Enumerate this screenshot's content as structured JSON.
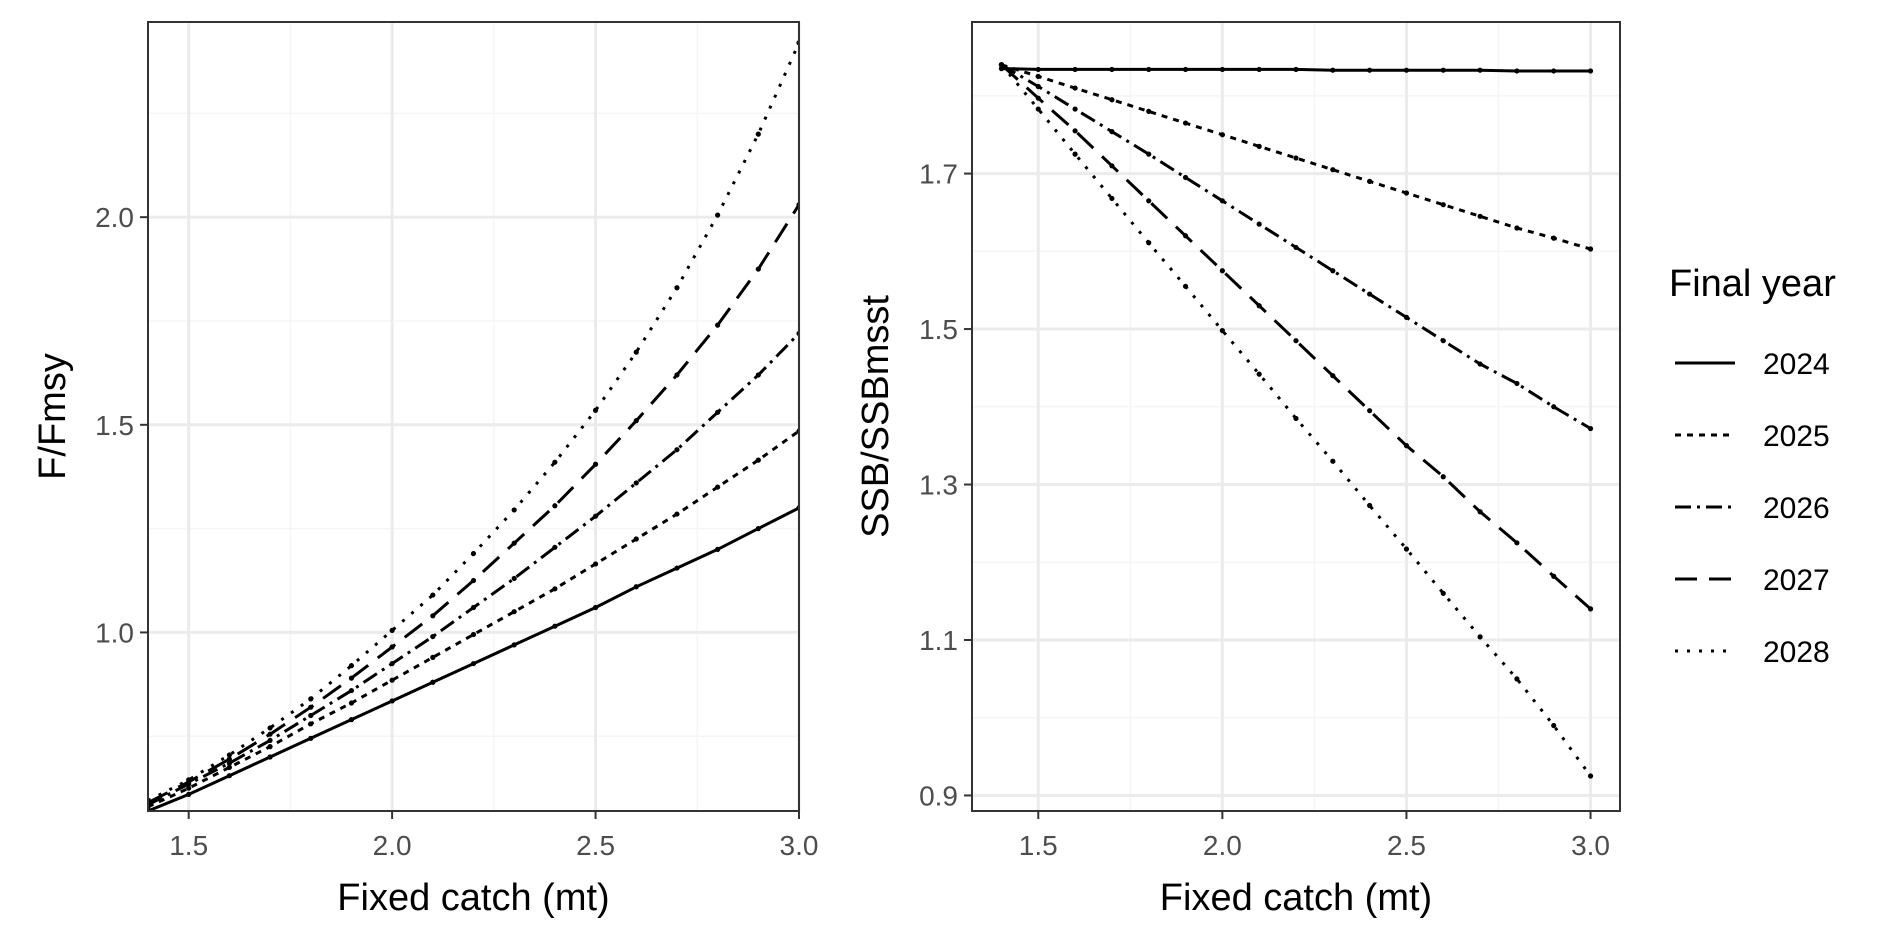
{
  "colors": {
    "line": "#000000",
    "grid_major": "#ebebeb",
    "grid_minor": "#f5f5f5",
    "panel_border": "#333333",
    "tick_text": "#4d4d4d"
  },
  "legend": {
    "title": "Final year",
    "placement": "right"
  },
  "chart_data": [
    {
      "type": "line",
      "title": "",
      "xlabel": "Fixed catch (mt)",
      "ylabel": "F/Fmsy",
      "xlim": [
        1.4,
        3.0
      ],
      "ylim": [
        0.57,
        2.47
      ],
      "xticks": [
        1.5,
        2.0,
        2.5,
        3.0
      ],
      "xtick_labels": [
        "1.5",
        "2.0",
        "2.5",
        "3.0"
      ],
      "yticks": [
        1.0,
        1.5,
        2.0
      ],
      "ytick_labels": [
        "1.0",
        "1.5",
        "2.0"
      ],
      "grid": true,
      "points_shown": true,
      "x": [
        1.4,
        1.5,
        1.6,
        1.7,
        1.8,
        1.9,
        2.0,
        2.1,
        2.2,
        2.3,
        2.4,
        2.5,
        2.6,
        2.7,
        2.8,
        2.9,
        3.0
      ],
      "series": [
        {
          "name": "2024",
          "dash": "solid",
          "values": [
            0.57,
            0.61,
            0.655,
            0.7,
            0.745,
            0.79,
            0.835,
            0.88,
            0.925,
            0.97,
            1.015,
            1.06,
            1.11,
            1.155,
            1.2,
            1.25,
            1.3
          ]
        },
        {
          "name": "2025",
          "dash": "dotted-dash",
          "values": [
            0.58,
            0.625,
            0.675,
            0.725,
            0.78,
            0.83,
            0.885,
            0.94,
            0.995,
            1.05,
            1.105,
            1.165,
            1.225,
            1.285,
            1.35,
            1.415,
            1.485
          ]
        },
        {
          "name": "2026",
          "dash": "dash-dot",
          "values": [
            0.585,
            0.635,
            0.685,
            0.74,
            0.8,
            0.86,
            0.925,
            0.99,
            1.06,
            1.13,
            1.205,
            1.28,
            1.36,
            1.44,
            1.53,
            1.62,
            1.72
          ]
        },
        {
          "name": "2027",
          "dash": "long-dash",
          "values": [
            0.59,
            0.64,
            0.695,
            0.755,
            0.82,
            0.89,
            0.965,
            1.04,
            1.125,
            1.215,
            1.305,
            1.405,
            1.51,
            1.62,
            1.74,
            1.875,
            2.03
          ]
        },
        {
          "name": "2028",
          "dash": "dotted",
          "values": [
            0.595,
            0.645,
            0.705,
            0.77,
            0.84,
            0.92,
            1.005,
            1.09,
            1.19,
            1.295,
            1.41,
            1.535,
            1.675,
            1.83,
            2.005,
            2.2,
            2.42
          ]
        }
      ]
    },
    {
      "type": "line",
      "title": "",
      "xlabel": "Fixed catch (mt)",
      "ylabel": "SSB/SSBmsst",
      "xlim": [
        1.32,
        3.08
      ],
      "ylim": [
        0.88,
        1.895
      ],
      "xticks": [
        1.5,
        2.0,
        2.5,
        3.0
      ],
      "xtick_labels": [
        "1.5",
        "2.0",
        "2.5",
        "3.0"
      ],
      "yticks": [
        0.9,
        1.1,
        1.3,
        1.5,
        1.7
      ],
      "ytick_labels": [
        "0.9",
        "1.1",
        "1.3",
        "1.5",
        "1.7"
      ],
      "grid": true,
      "points_shown": true,
      "x": [
        1.4,
        1.5,
        1.6,
        1.7,
        1.8,
        1.9,
        2.0,
        2.1,
        2.2,
        2.3,
        2.4,
        2.5,
        2.6,
        2.7,
        2.8,
        2.9,
        3.0
      ],
      "series": [
        {
          "name": "2024",
          "dash": "solid",
          "values": [
            1.835,
            1.834,
            1.834,
            1.834,
            1.834,
            1.834,
            1.834,
            1.834,
            1.834,
            1.833,
            1.833,
            1.833,
            1.833,
            1.833,
            1.832,
            1.832,
            1.832
          ]
        },
        {
          "name": "2025",
          "dash": "dotted-dash",
          "values": [
            1.84,
            1.825,
            1.81,
            1.795,
            1.78,
            1.765,
            1.75,
            1.735,
            1.72,
            1.705,
            1.69,
            1.675,
            1.66,
            1.645,
            1.63,
            1.617,
            1.603
          ]
        },
        {
          "name": "2026",
          "dash": "dash-dot",
          "values": [
            1.84,
            1.812,
            1.783,
            1.754,
            1.725,
            1.695,
            1.665,
            1.635,
            1.605,
            1.575,
            1.545,
            1.515,
            1.485,
            1.455,
            1.43,
            1.4,
            1.372
          ]
        },
        {
          "name": "2027",
          "dash": "long-dash",
          "values": [
            1.84,
            1.797,
            1.755,
            1.71,
            1.665,
            1.62,
            1.575,
            1.53,
            1.485,
            1.44,
            1.395,
            1.35,
            1.31,
            1.265,
            1.225,
            1.182,
            1.14
          ]
        },
        {
          "name": "2028",
          "dash": "dotted",
          "values": [
            1.84,
            1.783,
            1.725,
            1.668,
            1.611,
            1.555,
            1.498,
            1.442,
            1.385,
            1.33,
            1.273,
            1.217,
            1.16,
            1.104,
            1.05,
            0.99,
            0.925
          ]
        }
      ]
    }
  ]
}
